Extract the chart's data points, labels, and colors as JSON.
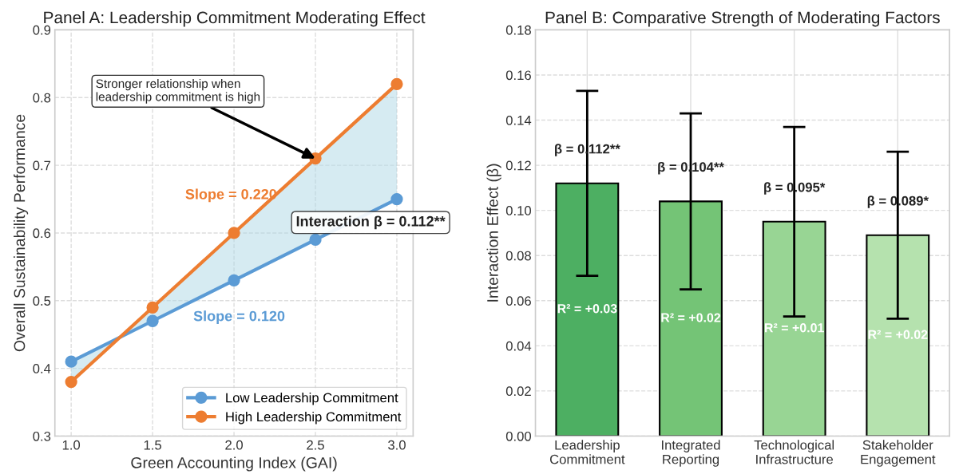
{
  "chart_data": [
    {
      "type": "line",
      "title": "Panel A: Leadership Commitment Moderating Effect",
      "xlabel": "Green Accounting Index (GAI)",
      "ylabel": "Overall Sustainability Performance",
      "x": [
        1.0,
        1.5,
        2.0,
        2.5,
        3.0
      ],
      "series": [
        {
          "name": "Low Leadership Commitment",
          "color": "#5b9bd5",
          "values": [
            0.41,
            0.47,
            0.53,
            0.59,
            0.65
          ]
        },
        {
          "name": "High Leadership Commitment",
          "color": "#ed7d31",
          "values": [
            0.38,
            0.49,
            0.6,
            0.71,
            0.82
          ],
          "lower": [
            0.41,
            0.47,
            0.53,
            0.59,
            0.65
          ],
          "upper": [
            0.38,
            0.49,
            0.6,
            0.71,
            0.82
          ]
        }
      ],
      "annotations": [
        {
          "text": "Stronger relationship when\nleadership commitment is high",
          "x": 2.5,
          "y": 0.71
        },
        "Slope = 0.220",
        "Slope = 0.120",
        "Interaction β = 0.112**"
      ],
      "xlim": [
        0.9,
        3.1
      ],
      "ylim": [
        0.3,
        0.9
      ],
      "xticks": [
        {
          "value": 1.0,
          "label": "1.0"
        },
        1.5,
        {
          "value": 2.0,
          "label": "2.0"
        },
        2.5,
        {
          "value": 3.0,
          "label": "3.0"
        }
      ],
      "yticks": [
        0.3,
        0.4,
        0.5,
        0.6,
        0.7,
        0.8,
        0.9
      ],
      "grid": true,
      "legend": "bottom right",
      "marker": "circle",
      "line_style": "solid"
    },
    {
      "type": "bar",
      "title": "Panel B: Comparative Strength of Moderating Factors",
      "ylabel": "Interaction Effect (β)",
      "categories": [
        "Leadership\nCommitment",
        "Integrated\nReporting",
        "Technological\nInfrastructure",
        "Stakeholder\nEngagement"
      ],
      "values": [
        0.112,
        0.104,
        0.095,
        0.089
      ],
      "colors": [
        "#4daf62",
        "#74c476",
        "#98d594",
        "#b5e2ae"
      ],
      "errors": [
        [
          0.071,
          0.153
        ],
        [
          0.065,
          0.143
        ],
        [
          0.053,
          0.137
        ],
        [
          0.052,
          0.126
        ]
      ],
      "value_labels": [
        "β = 0.112**",
        "β = 0.104**",
        "β = 0.095*",
        "β = 0.089*"
      ],
      "annotations": [
        "R² = +0.03",
        "R² = +0.02",
        "R² = +0.01",
        "R² = +0.02"
      ],
      "ylim": [
        0,
        0.18
      ],
      "yticks": [
        {
          "value": 0,
          "label": "0.00"
        },
        {
          "value": 0.02,
          "label": "0.02"
        },
        {
          "value": 0.04,
          "label": "0.04"
        },
        {
          "value": 0.06,
          "label": "0.06"
        },
        {
          "value": 0.08,
          "label": "0.08"
        },
        {
          "value": 0.1,
          "label": "0.10"
        },
        {
          "value": 0.12,
          "label": "0.12"
        },
        {
          "value": 0.14,
          "label": "0.14"
        },
        {
          "value": 0.16,
          "label": "0.16"
        },
        {
          "value": 0.18,
          "label": "0.18"
        }
      ],
      "grid": true
    }
  ]
}
